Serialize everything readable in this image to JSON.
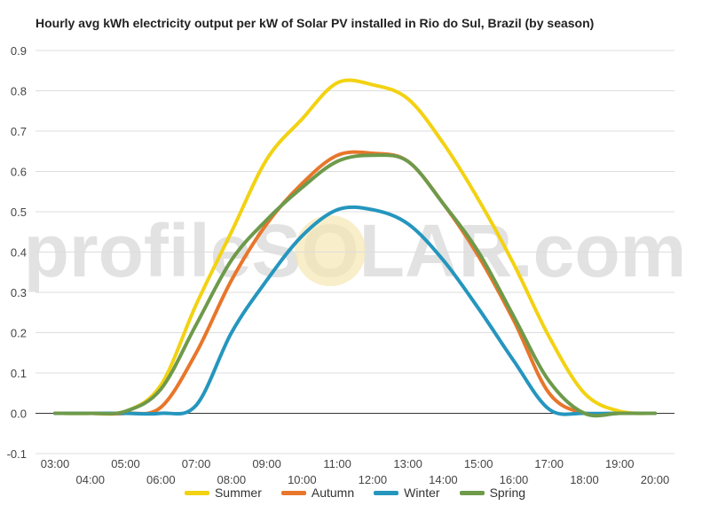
{
  "chart_data": {
    "type": "line",
    "title": "Hourly avg kWh electricity output per kW of Solar PV installed in Rio do Sul, Brazil (by season)",
    "watermark": "profileSOLAR.com",
    "xlabel": "",
    "ylabel": "",
    "ylim": [
      -0.1,
      0.9
    ],
    "yticks": [
      "-0.1",
      "0.0",
      "0.1",
      "0.2",
      "0.3",
      "0.4",
      "0.5",
      "0.6",
      "0.7",
      "0.8",
      "0.9"
    ],
    "categories": [
      "03:00",
      "04:00",
      "05:00",
      "06:00",
      "07:00",
      "08:00",
      "09:00",
      "10:00",
      "11:00",
      "12:00",
      "13:00",
      "14:00",
      "15:00",
      "16:00",
      "17:00",
      "18:00",
      "19:00",
      "20:00"
    ],
    "grid": true,
    "legend_position": "bottom",
    "series": [
      {
        "name": "Summer",
        "color": "#F2D212",
        "values": [
          0,
          0,
          0.005,
          0.07,
          0.27,
          0.45,
          0.63,
          0.73,
          0.82,
          0.815,
          0.78,
          0.67,
          0.53,
          0.37,
          0.19,
          0.05,
          0.005,
          0
        ]
      },
      {
        "name": "Autumn",
        "color": "#E8762B",
        "values": [
          0,
          0,
          0,
          0.015,
          0.15,
          0.33,
          0.47,
          0.57,
          0.64,
          0.645,
          0.625,
          0.52,
          0.39,
          0.23,
          0.05,
          0,
          0,
          0
        ]
      },
      {
        "name": "Winter",
        "color": "#2596BE",
        "values": [
          0,
          0,
          0,
          0,
          0.02,
          0.2,
          0.33,
          0.44,
          0.505,
          0.505,
          0.47,
          0.38,
          0.26,
          0.13,
          0.01,
          0,
          0,
          0
        ]
      },
      {
        "name": "Spring",
        "color": "#6E9A4B",
        "values": [
          0,
          0,
          0.005,
          0.06,
          0.22,
          0.38,
          0.48,
          0.56,
          0.625,
          0.64,
          0.625,
          0.52,
          0.4,
          0.24,
          0.08,
          0,
          0,
          0
        ]
      }
    ]
  }
}
